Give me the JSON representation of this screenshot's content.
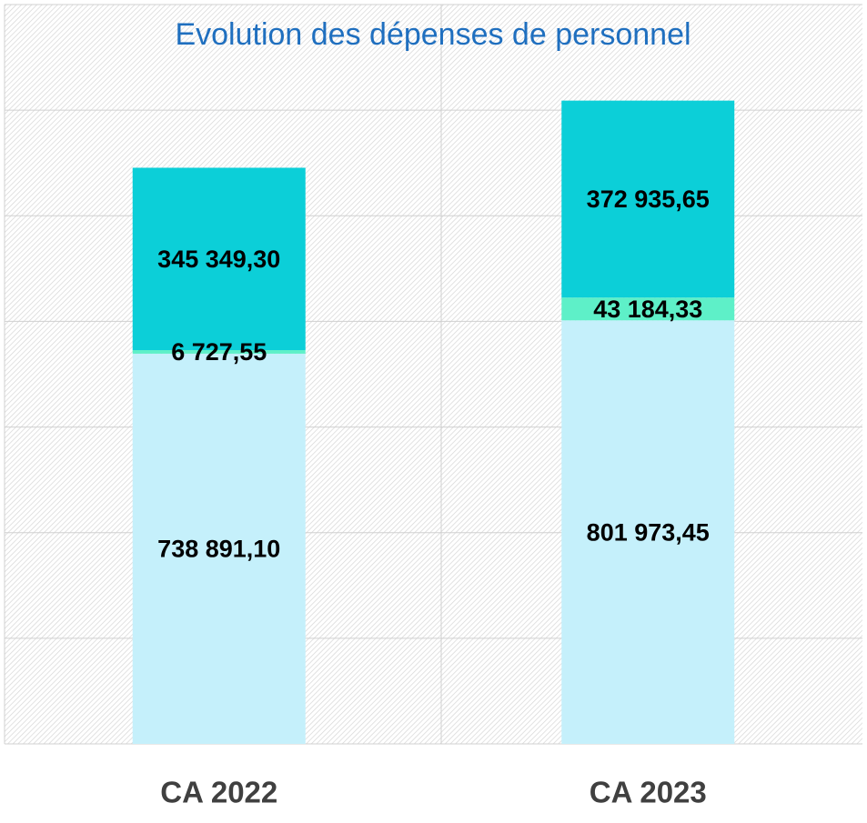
{
  "chart_data": {
    "type": "stacked_bar",
    "title": "Evolution des dépenses de personnel",
    "categories": [
      "CA 2022",
      "CA 2023"
    ],
    "series": [
      {
        "color": "#c5f0fb",
        "values": [
          738891.1,
          801973.45
        ],
        "value_labels": [
          "738 891,10",
          "801 973,45"
        ]
      },
      {
        "color": "#5ef0c8",
        "values": [
          6727.55,
          43184.33
        ],
        "value_labels": [
          "6 727,55",
          "43 184,33"
        ]
      },
      {
        "color": "#0ccfd8",
        "values": [
          345349.3,
          372935.65
        ],
        "value_labels": [
          "345 349,30",
          "372 935,65"
        ]
      }
    ],
    "ylim": [
      0,
      1400000
    ],
    "yticks": [
      0,
      200000,
      400000,
      600000,
      800000,
      1000000,
      1200000,
      1400000
    ],
    "grid": true
  }
}
